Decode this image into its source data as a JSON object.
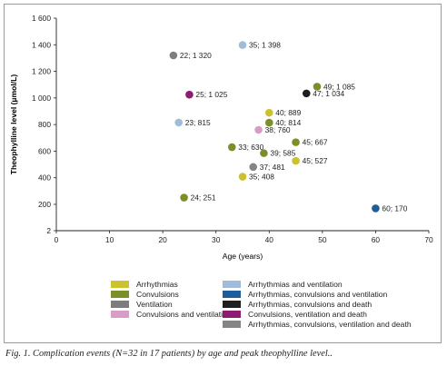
{
  "chart_data": {
    "type": "scatter",
    "title": "",
    "xlabel": "Age (years)",
    "ylabel": "Theophylline level (µmol/L)",
    "xlim": [
      0,
      70
    ],
    "ylim": [
      2,
      1600
    ],
    "x_ticks": [
      {
        "value": 0,
        "label": "0"
      },
      {
        "value": 10,
        "label": "10"
      },
      {
        "value": 20,
        "label": "20"
      },
      {
        "value": 30,
        "label": "30"
      },
      {
        "value": 40,
        "label": "40"
      },
      {
        "value": 50,
        "label": "50"
      },
      {
        "value": 60,
        "label": "60"
      },
      {
        "value": 70,
        "label": "70"
      }
    ],
    "y_ticks": [
      {
        "value": 2,
        "label": "2"
      },
      {
        "value": 200,
        "label": "200"
      },
      {
        "value": 400,
        "label": "400"
      },
      {
        "value": 600,
        "label": "600"
      },
      {
        "value": 800,
        "label": "800"
      },
      {
        "value": 1000,
        "label": "1 000"
      },
      {
        "value": 1200,
        "label": "1 200"
      },
      {
        "value": 1400,
        "label": "1 400"
      },
      {
        "value": 1600,
        "label": "1 600"
      }
    ],
    "grid": false,
    "legend_position": "bottom",
    "categories": [
      {
        "key": "arr",
        "name": "Arrhythmias",
        "color": "#cdc12f"
      },
      {
        "key": "conv",
        "name": "Convulsions",
        "color": "#7b8f28"
      },
      {
        "key": "vent",
        "name": "Ventilation",
        "color": "#7d7d7d"
      },
      {
        "key": "cv",
        "name": "Convulsions and ventilation",
        "color": "#d89cc8"
      },
      {
        "key": "av",
        "name": "Arrhythmias and ventilation",
        "color": "#9fbdd8"
      },
      {
        "key": "acv",
        "name": "Arrhythmias, convulsions and ventilation",
        "color": "#1d5d9c"
      },
      {
        "key": "acd",
        "name": "Arrhythmias, convulsions and death",
        "color": "#1f1f1f"
      },
      {
        "key": "cvd",
        "name": "Convulsions, ventilation and death",
        "color": "#8e1a72"
      },
      {
        "key": "acvd",
        "name": "Arrhythmias, convulsions, ventilation and death",
        "color": "#858585"
      }
    ],
    "points": [
      {
        "x": 35,
        "y": 1398,
        "label": "35; 1 398",
        "category": "av"
      },
      {
        "x": 22,
        "y": 1320,
        "label": "22; 1 320",
        "category": "vent"
      },
      {
        "x": 49,
        "y": 1085,
        "label": "49; 1 085",
        "category": "conv"
      },
      {
        "x": 47,
        "y": 1034,
        "label": "47; 1 034",
        "category": "acd"
      },
      {
        "x": 25,
        "y": 1025,
        "label": "25; 1 025",
        "category": "cvd"
      },
      {
        "x": 40,
        "y": 889,
        "label": "40; 889",
        "category": "arr"
      },
      {
        "x": 23,
        "y": 815,
        "label": "23; 815",
        "category": "av"
      },
      {
        "x": 40,
        "y": 814,
        "label": "40; 814",
        "category": "conv"
      },
      {
        "x": 38,
        "y": 760,
        "label": "38; 760",
        "category": "cv"
      },
      {
        "x": 45,
        "y": 667,
        "label": "45; 667",
        "category": "conv"
      },
      {
        "x": 33,
        "y": 630,
        "label": "33; 630",
        "category": "conv"
      },
      {
        "x": 39,
        "y": 585,
        "label": "39; 585",
        "category": "conv"
      },
      {
        "x": 45,
        "y": 527,
        "label": "45; 527",
        "category": "arr"
      },
      {
        "x": 37,
        "y": 481,
        "label": "37; 481",
        "category": "acvd"
      },
      {
        "x": 35,
        "y": 408,
        "label": "35; 408",
        "category": "arr"
      },
      {
        "x": 24,
        "y": 251,
        "label": "24; 251",
        "category": "conv"
      },
      {
        "x": 60,
        "y": 170,
        "label": "60; 170",
        "category": "acv"
      }
    ]
  },
  "caption": "Fig. 1. Complication events (N=32 in 17 patients) by age and peak theophylline level.."
}
